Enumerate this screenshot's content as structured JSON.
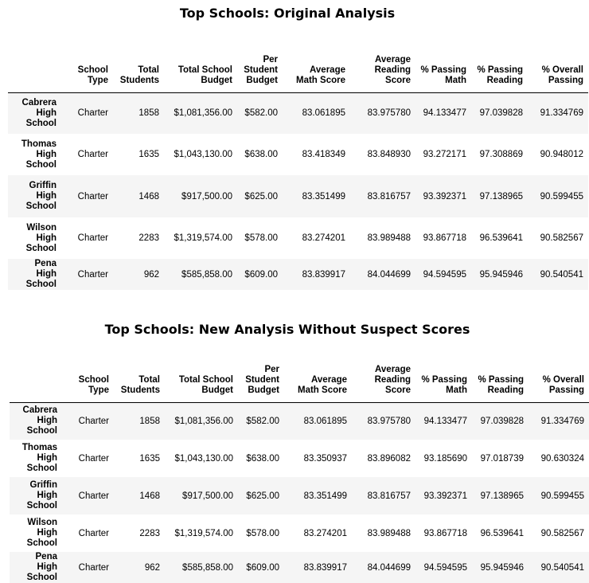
{
  "tables": [
    {
      "title": "Top Schools: Original Analysis",
      "columns": [
        "School\nType",
        "Total\nStudents",
        "Total School\nBudget",
        "Per\nStudent\nBudget",
        "Average\nMath Score",
        "Average\nReading\nScore",
        "% Passing\nMath",
        "% Passing\nReading",
        "% Overall\nPassing"
      ],
      "rows": [
        {
          "school": "Cabrera\nHigh\nSchool",
          "cells": [
            "Charter",
            "1858",
            "$1,081,356.00",
            "$582.00",
            "83.061895",
            "83.975780",
            "94.133477",
            "97.039828",
            "91.334769"
          ]
        },
        {
          "school": "Thomas\nHigh\nSchool",
          "cells": [
            "Charter",
            "1635",
            "$1,043,130.00",
            "$638.00",
            "83.418349",
            "83.848930",
            "93.272171",
            "97.308869",
            "90.948012"
          ]
        },
        {
          "school": "Griffin\nHigh\nSchool",
          "cells": [
            "Charter",
            "1468",
            "$917,500.00",
            "$625.00",
            "83.351499",
            "83.816757",
            "93.392371",
            "97.138965",
            "90.599455"
          ]
        },
        {
          "school": "Wilson\nHigh\nSchool",
          "cells": [
            "Charter",
            "2283",
            "$1,319,574.00",
            "$578.00",
            "83.274201",
            "83.989488",
            "93.867718",
            "96.539641",
            "90.582567"
          ]
        },
        {
          "school": "Pena High\nSchool",
          "cells": [
            "Charter",
            "962",
            "$585,858.00",
            "$609.00",
            "83.839917",
            "84.044699",
            "94.594595",
            "95.945946",
            "90.540541"
          ]
        }
      ]
    },
    {
      "title": "Top Schools: New Analysis Without Suspect Scores",
      "columns": [
        "School\nType",
        "Total\nStudents",
        "Total School\nBudget",
        "Per\nStudent\nBudget",
        "Average\nMath Score",
        "Average\nReading\nScore",
        "% Passing\nMath",
        "% Passing\nReading",
        "% Overall\nPassing"
      ],
      "rows": [
        {
          "school": "Cabrera\nHigh\nSchool",
          "cells": [
            "Charter",
            "1858",
            "$1,081,356.00",
            "$582.00",
            "83.061895",
            "83.975780",
            "94.133477",
            "97.039828",
            "91.334769"
          ]
        },
        {
          "school": "Thomas\nHigh\nSchool",
          "cells": [
            "Charter",
            "1635",
            "$1,043,130.00",
            "$638.00",
            "83.350937",
            "83.896082",
            "93.185690",
            "97.018739",
            "90.630324"
          ]
        },
        {
          "school": "Griffin\nHigh\nSchool",
          "cells": [
            "Charter",
            "1468",
            "$917,500.00",
            "$625.00",
            "83.351499",
            "83.816757",
            "93.392371",
            "97.138965",
            "90.599455"
          ]
        },
        {
          "school": "Wilson\nHigh\nSchool",
          "cells": [
            "Charter",
            "2283",
            "$1,319,574.00",
            "$578.00",
            "83.274201",
            "83.989488",
            "93.867718",
            "96.539641",
            "90.582567"
          ]
        },
        {
          "school": "Pena High\nSchool",
          "cells": [
            "Charter",
            "962",
            "$585,858.00",
            "$609.00",
            "83.839917",
            "84.044699",
            "94.594595",
            "95.945946",
            "90.540541"
          ]
        }
      ]
    }
  ]
}
